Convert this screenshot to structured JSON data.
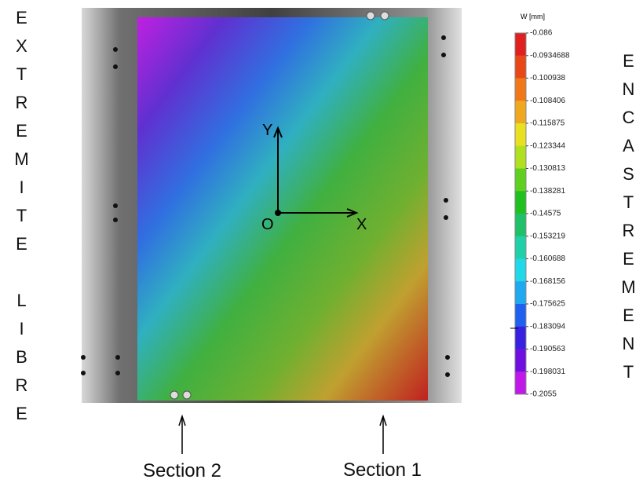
{
  "left_label": "EXTREMITE LIBRE",
  "right_label": "ENCASTREMENT",
  "axes": {
    "y": "Y",
    "origin": "O",
    "x": "X"
  },
  "colorbar": {
    "title": "W [mm]",
    "ticks": [
      -0.086,
      -0.0934688,
      -0.100938,
      -0.108406,
      -0.115875,
      -0.123344,
      -0.130813,
      -0.138281,
      -0.14575,
      -0.153219,
      -0.160688,
      -0.168156,
      -0.175625,
      -0.183094,
      -0.190563,
      -0.198031,
      -0.2055
    ]
  },
  "sections": [
    "Section 2",
    "Section 1"
  ]
}
